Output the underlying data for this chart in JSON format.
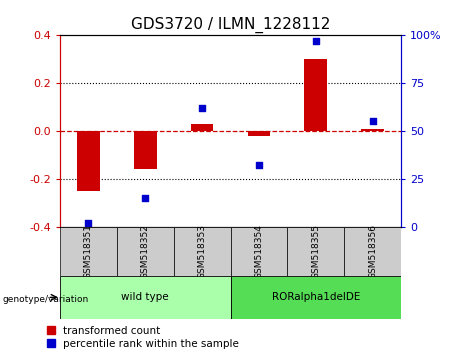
{
  "title": "GDS3720 / ILMN_1228112",
  "samples": [
    "GSM518351",
    "GSM518352",
    "GSM518353",
    "GSM518354",
    "GSM518355",
    "GSM518356"
  ],
  "transformed_count": [
    -0.25,
    -0.16,
    0.03,
    -0.02,
    0.3,
    0.01
  ],
  "percentile_rank": [
    2,
    15,
    62,
    32,
    97,
    55
  ],
  "bar_color": "#cc0000",
  "dot_color": "#0000cc",
  "zero_line_color": "#cc0000",
  "grid_color": "#000000",
  "ylim_left": [
    -0.4,
    0.4
  ],
  "ylim_right": [
    0,
    100
  ],
  "yticks_left": [
    -0.4,
    -0.2,
    0.0,
    0.2,
    0.4
  ],
  "yticks_right": [
    0,
    25,
    50,
    75,
    100
  ],
  "ytick_labels_right": [
    "0",
    "25",
    "50",
    "75",
    "100%"
  ],
  "genotype_groups": [
    {
      "label": "wild type",
      "samples_idx": [
        0,
        1,
        2
      ],
      "color": "#aaffaa"
    },
    {
      "label": "RORalpha1delDE",
      "samples_idx": [
        3,
        4,
        5
      ],
      "color": "#55dd55"
    }
  ],
  "genotype_label": "genotype/variation",
  "legend_items": [
    {
      "color": "#cc0000",
      "label": "transformed count"
    },
    {
      "color": "#0000cc",
      "label": "percentile rank within the sample"
    }
  ],
  "bar_width": 0.4,
  "background_color": "#ffffff",
  "tick_area_color": "#cccccc",
  "title_fontsize": 11,
  "axis_fontsize": 8,
  "legend_fontsize": 7.5
}
